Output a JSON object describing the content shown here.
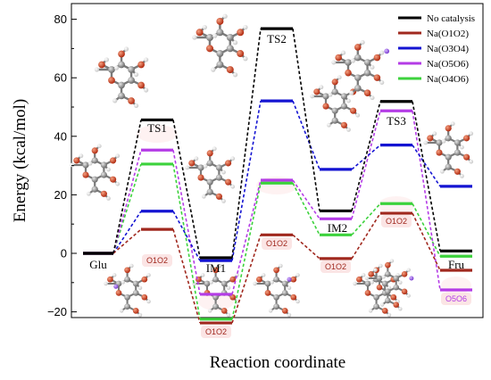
{
  "chart_data": {
    "type": "line",
    "title": "",
    "xlabel": "Reaction coordinate",
    "ylabel": "Energy (kcal/mol)",
    "ylim": [
      -28,
      82
    ],
    "yticks": [
      -20,
      0,
      20,
      40,
      60,
      80
    ],
    "ytick_labels": [
      "−20",
      "0",
      "20",
      "40",
      "60",
      "80"
    ],
    "states": [
      "Glu",
      "TS1",
      "IM1",
      "TS2",
      "IM2",
      "TS3",
      "Fru"
    ],
    "legend_position": "top-right",
    "series": [
      {
        "name": "No catalysis",
        "color": "#000000",
        "values": [
          0,
          45.6,
          -1.5,
          76.8,
          14.5,
          51.9,
          0.8
        ]
      },
      {
        "name": "Na(O1O2)",
        "color": "#a0281e",
        "values": [
          0,
          8.2,
          -23.8,
          6.3,
          -1.8,
          13.7,
          -5.8
        ]
      },
      {
        "name": "Na(O3O4)",
        "color": "#1414d2",
        "values": [
          0,
          14.4,
          -2.5,
          52.1,
          28.7,
          37.0,
          22.9
        ]
      },
      {
        "name": "Na(O5O6)",
        "color": "#b43ce6",
        "values": [
          0,
          35.3,
          -14.0,
          25.0,
          11.8,
          48.7,
          -12.5
        ]
      },
      {
        "name": "Na(O4O6)",
        "color": "#3cd23c",
        "values": [
          0,
          30.5,
          -22.5,
          24.0,
          6.3,
          17.0,
          -1.0
        ]
      }
    ],
    "annotations": [
      {
        "text": "O1O2",
        "state": "TS1",
        "color": "#a0281e"
      },
      {
        "text": "O1O2",
        "state": "IM1",
        "color": "#a0281e"
      },
      {
        "text": "O1O2",
        "state": "TS2",
        "color": "#a0281e"
      },
      {
        "text": "O1O2",
        "state": "IM2",
        "color": "#a0281e"
      },
      {
        "text": "O1O2",
        "state": "TS3",
        "color": "#a0281e"
      },
      {
        "text": "O5O6",
        "state": "Fru",
        "color": "#b43ce6"
      }
    ]
  }
}
